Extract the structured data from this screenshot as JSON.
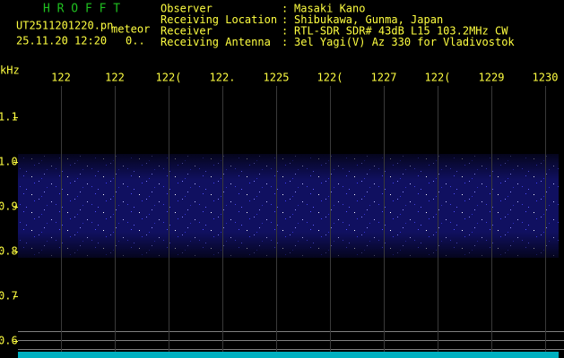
{
  "header": {
    "app": "H R O F F T",
    "file": "UT2511201220.pn",
    "kind": "meteor",
    "datetime": "25.11.20 12:20",
    "status": "0..",
    "fields": [
      {
        "label": "Observer",
        "sep": ":",
        "value": "Masaki Kano"
      },
      {
        "label": "Receiving Location",
        "sep": ":",
        "value": "Shibukawa, Gunma, Japan"
      },
      {
        "label": "Receiver",
        "sep": ":",
        "value": "RTL-SDR SDR# 43dB L15 103.2MHz CW"
      },
      {
        "label": "Receiving Antenna",
        "sep": ":",
        "value": "3el Yagi(V) Az 330 for Vladivostok"
      }
    ]
  },
  "plot": {
    "unit": "kHz",
    "time_labels": [
      "122",
      "122",
      "122(",
      "122.",
      "1225",
      "122(",
      "1227",
      "122(",
      "1229",
      "1230"
    ],
    "freq_labels": [
      "1.1",
      "1.0",
      "0.9",
      "0.8",
      "0.7",
      "0.6"
    ]
  }
}
